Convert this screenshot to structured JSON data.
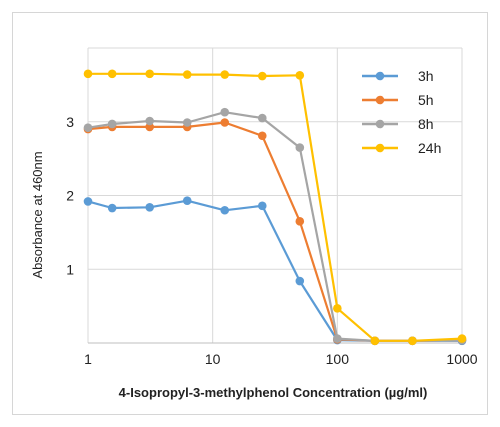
{
  "chart_data": {
    "type": "line",
    "xscale": "log",
    "xlabel": "4-Isopropyl-3-methylphenol Concentration (µg/ml)",
    "ylabel": "Absorbance at 460nm",
    "xlim": [
      1,
      1000
    ],
    "ylim": [
      0,
      4
    ],
    "xticks": [
      {
        "value": 1,
        "label": "1"
      },
      {
        "value": 10,
        "label": "10"
      },
      {
        "value": 100,
        "label": "100"
      },
      {
        "value": 1000,
        "label": "1000"
      }
    ],
    "yticks": [
      {
        "value": 1,
        "label": "1"
      },
      {
        "value": 2,
        "label": "2"
      },
      {
        "value": 3,
        "label": "3"
      }
    ],
    "grid": true,
    "legend_position": "top-right",
    "x": [
      1,
      1.5625,
      3.125,
      6.25,
      12.5,
      25,
      50,
      100,
      200,
      400,
      1000
    ],
    "series": [
      {
        "name": "3h",
        "color": "#5b9bd5",
        "values": [
          1.92,
          1.83,
          1.84,
          1.93,
          1.8,
          1.86,
          0.84,
          0.04,
          0.03,
          0.03,
          0.03
        ]
      },
      {
        "name": "5h",
        "color": "#ed7d31",
        "values": [
          2.9,
          2.93,
          2.93,
          2.93,
          2.99,
          2.81,
          1.65,
          0.05,
          0.03,
          0.03,
          0.04
        ]
      },
      {
        "name": "8h",
        "color": "#a5a5a5",
        "values": [
          2.92,
          2.97,
          3.01,
          2.99,
          3.13,
          3.05,
          2.65,
          0.06,
          0.03,
          0.03,
          0.04
        ]
      },
      {
        "name": "24h",
        "color": "#ffc000",
        "values": [
          3.65,
          3.65,
          3.65,
          3.64,
          3.64,
          3.62,
          3.63,
          0.47,
          0.03,
          0.03,
          0.06
        ]
      }
    ]
  }
}
